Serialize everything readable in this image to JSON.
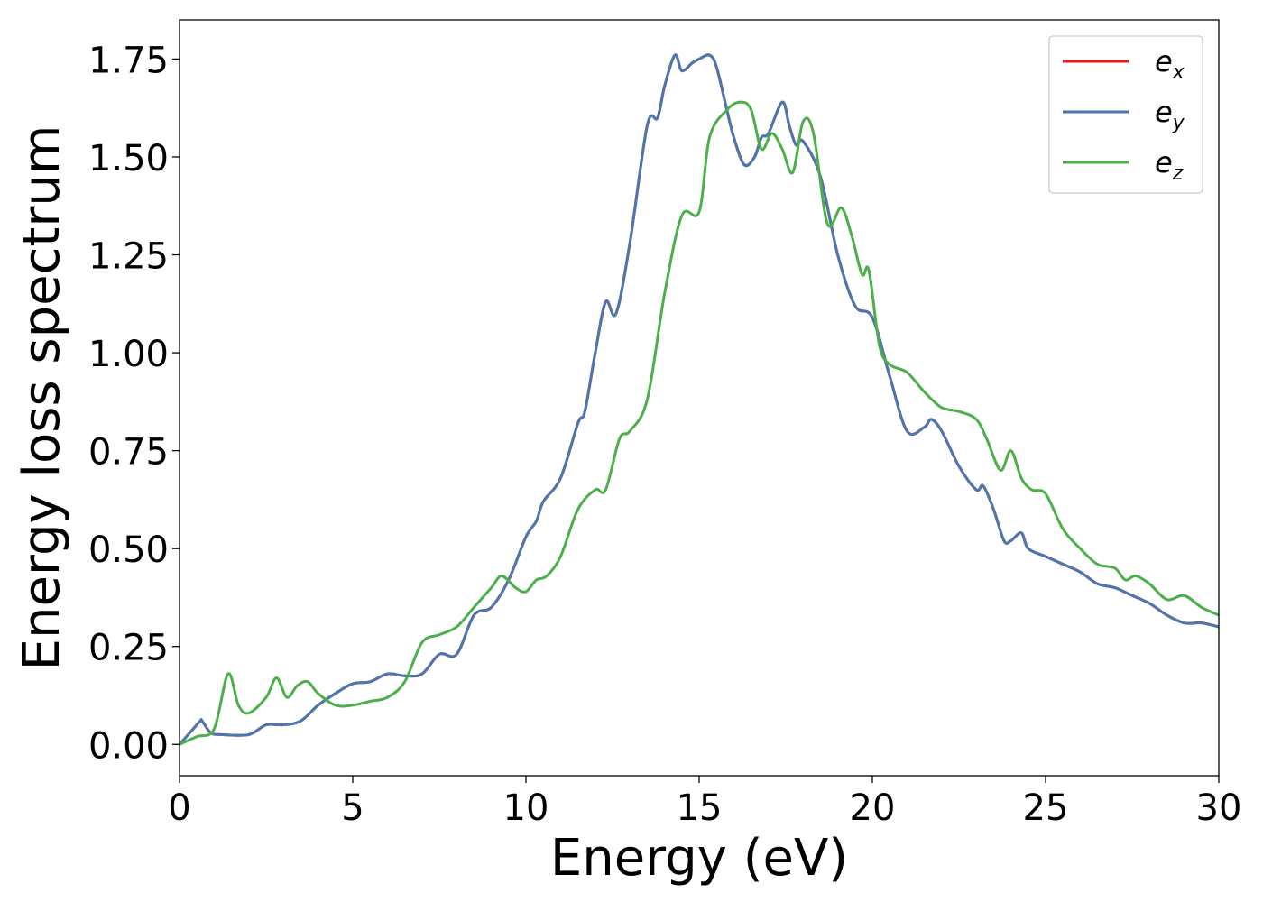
{
  "chart_data": {
    "type": "line",
    "title": "",
    "xlabel": "Energy (eV)",
    "ylabel": "Energy loss spectrum",
    "xlim": [
      0,
      30
    ],
    "ylim": [
      -0.08,
      1.85
    ],
    "xticks": [
      0,
      5,
      10,
      15,
      20,
      25,
      30
    ],
    "yticks": [
      "0.00",
      "0.25",
      "0.50",
      "0.75",
      "1.00",
      "1.25",
      "1.50",
      "1.75"
    ],
    "grid": false,
    "legend_position": "top-right",
    "series": [
      {
        "name": "e_x",
        "label_main": "e",
        "label_sub": "x",
        "color": "#e41a1c",
        "x": [
          0,
          0.3,
          0.6,
          0.65,
          0.9,
          1.2,
          2.0,
          2.5,
          3.0,
          3.5,
          4.0,
          4.5,
          5.0,
          5.5,
          6.0,
          6.5,
          7.0,
          7.5,
          8.0,
          8.5,
          9.0,
          9.5,
          10.0,
          10.3,
          10.5,
          11.0,
          11.5,
          11.7,
          12.0,
          12.3,
          12.6,
          13.0,
          13.5,
          13.8,
          14.0,
          14.3,
          14.5,
          14.8,
          15.0,
          15.3,
          15.5,
          15.8,
          16.0,
          16.3,
          16.6,
          16.8,
          17.0,
          17.4,
          17.6,
          17.8,
          18.0,
          18.5,
          19.0,
          19.5,
          20.0,
          20.5,
          21.0,
          21.5,
          21.7,
          22.0,
          22.5,
          23.0,
          23.2,
          23.5,
          23.8,
          24.0,
          24.3,
          24.5,
          25.0,
          25.5,
          26.0,
          26.5,
          27.0,
          27.5,
          28.0,
          28.5,
          29.0,
          29.5,
          30.0
        ],
        "values": [
          0.0,
          0.03,
          0.06,
          0.06,
          0.03,
          0.025,
          0.025,
          0.05,
          0.05,
          0.06,
          0.1,
          0.13,
          0.155,
          0.16,
          0.18,
          0.175,
          0.18,
          0.23,
          0.23,
          0.33,
          0.35,
          0.42,
          0.53,
          0.57,
          0.62,
          0.68,
          0.82,
          0.85,
          1.0,
          1.13,
          1.1,
          1.28,
          1.58,
          1.6,
          1.68,
          1.76,
          1.72,
          1.74,
          1.75,
          1.76,
          1.73,
          1.62,
          1.55,
          1.48,
          1.5,
          1.55,
          1.56,
          1.64,
          1.58,
          1.53,
          1.54,
          1.45,
          1.25,
          1.12,
          1.09,
          0.94,
          0.8,
          0.81,
          0.83,
          0.8,
          0.71,
          0.65,
          0.66,
          0.6,
          0.52,
          0.52,
          0.54,
          0.5,
          0.48,
          0.46,
          0.44,
          0.41,
          0.4,
          0.38,
          0.36,
          0.33,
          0.31,
          0.31,
          0.3
        ]
      },
      {
        "name": "e_y",
        "label_main": "e",
        "label_sub": "y",
        "color": "#4a77b0",
        "x": [
          0,
          0.3,
          0.6,
          0.65,
          0.9,
          1.2,
          2.0,
          2.5,
          3.0,
          3.5,
          4.0,
          4.5,
          5.0,
          5.5,
          6.0,
          6.5,
          7.0,
          7.5,
          8.0,
          8.5,
          9.0,
          9.5,
          10.0,
          10.3,
          10.5,
          11.0,
          11.5,
          11.7,
          12.0,
          12.3,
          12.6,
          13.0,
          13.5,
          13.8,
          14.0,
          14.3,
          14.5,
          14.8,
          15.0,
          15.3,
          15.5,
          15.8,
          16.0,
          16.3,
          16.6,
          16.8,
          17.0,
          17.4,
          17.6,
          17.8,
          18.0,
          18.5,
          19.0,
          19.5,
          20.0,
          20.5,
          21.0,
          21.5,
          21.7,
          22.0,
          22.5,
          23.0,
          23.2,
          23.5,
          23.8,
          24.0,
          24.3,
          24.5,
          25.0,
          25.5,
          26.0,
          26.5,
          27.0,
          27.5,
          28.0,
          28.5,
          29.0,
          29.5,
          30.0
        ],
        "values": [
          0.0,
          0.03,
          0.06,
          0.06,
          0.03,
          0.025,
          0.025,
          0.05,
          0.05,
          0.06,
          0.1,
          0.13,
          0.155,
          0.16,
          0.18,
          0.175,
          0.18,
          0.23,
          0.23,
          0.33,
          0.35,
          0.42,
          0.53,
          0.57,
          0.62,
          0.68,
          0.82,
          0.85,
          1.0,
          1.13,
          1.1,
          1.28,
          1.58,
          1.6,
          1.68,
          1.76,
          1.72,
          1.74,
          1.75,
          1.76,
          1.73,
          1.62,
          1.55,
          1.48,
          1.5,
          1.55,
          1.56,
          1.64,
          1.58,
          1.53,
          1.54,
          1.45,
          1.25,
          1.12,
          1.09,
          0.94,
          0.8,
          0.81,
          0.83,
          0.8,
          0.71,
          0.65,
          0.66,
          0.6,
          0.52,
          0.52,
          0.54,
          0.5,
          0.48,
          0.46,
          0.44,
          0.41,
          0.4,
          0.38,
          0.36,
          0.33,
          0.31,
          0.31,
          0.3
        ]
      },
      {
        "name": "e_z",
        "label_main": "e",
        "label_sub": "z",
        "color": "#4daf4a",
        "x": [
          0,
          0.5,
          1.0,
          1.4,
          1.7,
          2.0,
          2.5,
          2.8,
          3.1,
          3.4,
          3.7,
          4.0,
          4.5,
          5.0,
          5.5,
          6.0,
          6.5,
          7.0,
          7.5,
          8.0,
          8.5,
          9.0,
          9.3,
          9.7,
          10.0,
          10.3,
          10.6,
          11.0,
          11.5,
          12.0,
          12.3,
          12.7,
          13.0,
          13.5,
          14.0,
          14.5,
          15.0,
          15.3,
          15.8,
          16.2,
          16.5,
          16.8,
          17.1,
          17.4,
          17.7,
          18.0,
          18.3,
          18.7,
          19.1,
          19.4,
          19.7,
          19.9,
          20.2,
          20.5,
          21.0,
          21.5,
          22.0,
          22.5,
          23.0,
          23.3,
          23.7,
          24.0,
          24.3,
          24.6,
          25.0,
          25.5,
          26.0,
          26.5,
          27.0,
          27.3,
          27.6,
          28.0,
          28.5,
          29.0,
          29.5,
          30.0
        ],
        "values": [
          0.0,
          0.02,
          0.04,
          0.18,
          0.1,
          0.08,
          0.12,
          0.17,
          0.12,
          0.15,
          0.16,
          0.13,
          0.1,
          0.1,
          0.11,
          0.12,
          0.16,
          0.26,
          0.28,
          0.3,
          0.35,
          0.4,
          0.43,
          0.4,
          0.39,
          0.42,
          0.43,
          0.48,
          0.6,
          0.65,
          0.65,
          0.78,
          0.8,
          0.88,
          1.15,
          1.35,
          1.36,
          1.55,
          1.62,
          1.64,
          1.62,
          1.52,
          1.56,
          1.52,
          1.46,
          1.59,
          1.56,
          1.33,
          1.37,
          1.3,
          1.2,
          1.21,
          1.02,
          0.97,
          0.95,
          0.9,
          0.86,
          0.85,
          0.83,
          0.78,
          0.7,
          0.75,
          0.68,
          0.65,
          0.64,
          0.55,
          0.5,
          0.46,
          0.45,
          0.42,
          0.43,
          0.41,
          0.37,
          0.38,
          0.35,
          0.33
        ]
      }
    ]
  }
}
